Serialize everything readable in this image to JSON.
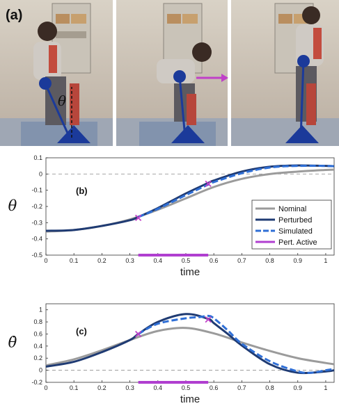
{
  "figure": {
    "panel_a_label": "(a)",
    "theta_symbol": "θ",
    "colors": {
      "nominal": "#9b9b9b",
      "perturbed": "#1f3b73",
      "simulated": "#2f6fd6",
      "pert_active": "#b03fd0",
      "marker": "#c040c8"
    }
  },
  "chart_data": [
    {
      "type": "line",
      "panel_label": "(b)",
      "ylabel": "θ",
      "xlabel": "time",
      "xlim": [
        0,
        1.03
      ],
      "ylim": [
        -0.5,
        0.1
      ],
      "xticks": [
        0,
        0.1,
        0.2,
        0.3,
        0.4,
        0.5,
        0.6,
        0.7,
        0.8,
        0.9,
        1
      ],
      "xtick_labels": [
        "0",
        "0.1",
        "0.2",
        "0.3",
        "0.4",
        "0.5",
        "0.6",
        "0.7",
        "0.8",
        "0.9",
        "1"
      ],
      "yticks": [
        -0.5,
        -0.4,
        -0.3,
        -0.2,
        -0.1,
        0,
        0.1
      ],
      "ytick_labels": [
        "-0.5",
        "-0.4",
        "-0.3",
        "-0.2",
        "-0.1",
        "0",
        "0.1"
      ],
      "reference_line": 0,
      "legend_position": "right",
      "series": [
        {
          "name": "Nominal",
          "style": "solid",
          "x": [
            0,
            0.1,
            0.2,
            0.3,
            0.4,
            0.5,
            0.6,
            0.7,
            0.8,
            0.9,
            1.0,
            1.03
          ],
          "y": [
            -0.355,
            -0.345,
            -0.32,
            -0.28,
            -0.22,
            -0.15,
            -0.08,
            -0.03,
            0.0,
            0.015,
            0.025,
            0.027
          ]
        },
        {
          "name": "Perturbed",
          "style": "solid",
          "x": [
            0,
            0.1,
            0.2,
            0.3,
            0.33,
            0.4,
            0.5,
            0.58,
            0.6,
            0.7,
            0.8,
            0.9,
            1.0,
            1.03
          ],
          "y": [
            -0.35,
            -0.345,
            -0.32,
            -0.285,
            -0.265,
            -0.21,
            -0.12,
            -0.055,
            -0.04,
            0.015,
            0.045,
            0.053,
            0.05,
            0.048
          ]
        },
        {
          "name": "Simulated",
          "style": "dashed",
          "x": [
            0.33,
            0.4,
            0.5,
            0.58,
            0.6,
            0.7,
            0.8,
            0.9,
            1.0,
            1.03
          ],
          "y": [
            -0.265,
            -0.215,
            -0.13,
            -0.065,
            -0.05,
            0.005,
            0.04,
            0.05,
            0.05,
            0.048
          ]
        }
      ],
      "markers": [
        {
          "x": 0.33,
          "y": -0.27
        },
        {
          "x": 0.58,
          "y": -0.06
        }
      ],
      "pert_active": {
        "name": "Pert. Active",
        "x": [
          0.33,
          0.58
        ]
      }
    },
    {
      "type": "line",
      "panel_label": "(c)",
      "ylabel": "θ̇",
      "xlabel": "time",
      "xlim": [
        0,
        1.03
      ],
      "ylim": [
        -0.2,
        1.1
      ],
      "xticks": [
        0,
        0.1,
        0.2,
        0.3,
        0.4,
        0.5,
        0.6,
        0.7,
        0.8,
        0.9,
        1
      ],
      "xtick_labels": [
        "0",
        "0.1",
        "0.2",
        "0.3",
        "0.4",
        "0.5",
        "0.6",
        "0.7",
        "0.8",
        "0.9",
        "1"
      ],
      "yticks": [
        -0.2,
        0,
        0.2,
        0.4,
        0.6,
        0.8,
        1
      ],
      "ytick_labels": [
        "-0.2",
        "0",
        "0.2",
        "0.4",
        "0.6",
        "0.8",
        "1"
      ],
      "reference_line": 0,
      "series": [
        {
          "name": "Nominal",
          "style": "solid",
          "x": [
            0,
            0.1,
            0.2,
            0.3,
            0.4,
            0.5,
            0.6,
            0.7,
            0.8,
            0.9,
            1.0,
            1.03
          ],
          "y": [
            0.08,
            0.18,
            0.33,
            0.5,
            0.65,
            0.7,
            0.61,
            0.46,
            0.32,
            0.2,
            0.12,
            0.1
          ]
        },
        {
          "name": "Perturbed",
          "style": "solid",
          "x": [
            0,
            0.1,
            0.2,
            0.3,
            0.33,
            0.4,
            0.5,
            0.58,
            0.6,
            0.65,
            0.7,
            0.8,
            0.9,
            1.0,
            1.03
          ],
          "y": [
            0.06,
            0.14,
            0.3,
            0.5,
            0.6,
            0.8,
            0.93,
            0.85,
            0.78,
            0.6,
            0.41,
            0.1,
            -0.04,
            -0.02,
            0.0
          ]
        },
        {
          "name": "Simulated",
          "style": "dashed",
          "x": [
            0.33,
            0.4,
            0.5,
            0.55,
            0.58,
            0.6,
            0.65,
            0.7,
            0.8,
            0.9,
            0.95,
            1.0,
            1.03
          ],
          "y": [
            0.6,
            0.77,
            0.86,
            0.88,
            0.9,
            0.86,
            0.66,
            0.44,
            0.15,
            -0.02,
            -0.04,
            0.0,
            0.02
          ]
        }
      ],
      "markers": [
        {
          "x": 0.33,
          "y": 0.6
        },
        {
          "x": 0.58,
          "y": 0.84
        }
      ],
      "pert_active": {
        "name": "Pert. Active",
        "x": [
          0.33,
          0.58
        ]
      }
    }
  ]
}
